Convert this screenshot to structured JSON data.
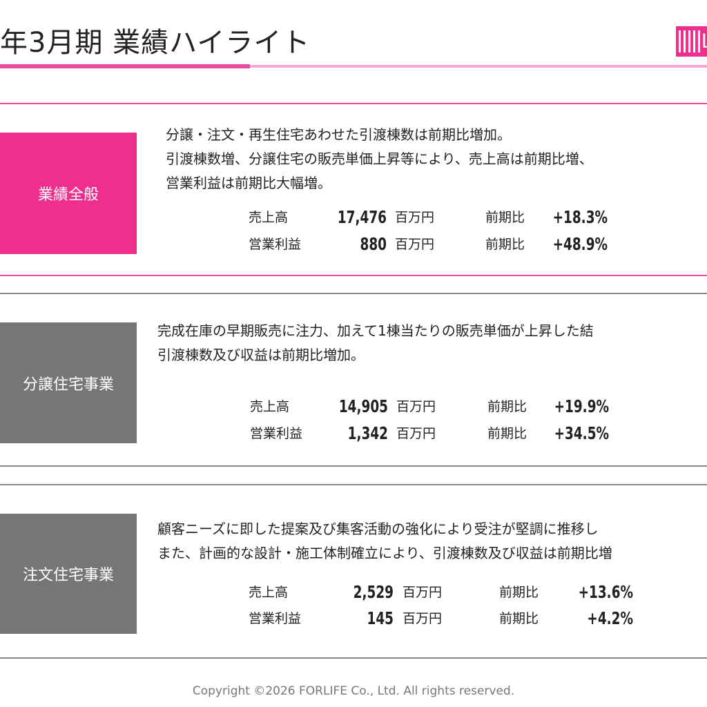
{
  "header": {
    "title": "年3月期 業績ハイライト"
  },
  "logo": {
    "text": "L"
  },
  "sections": [
    {
      "label": "業績全般",
      "lines": [
        "分譲・注文・再生住宅あわせた引渡棟数は前期比増加。",
        "引渡棟数増、分譲住宅の販売単価上昇等により、売上高は前期比増、",
        "営業利益は前期比大幅増。"
      ],
      "metrics": [
        {
          "label": "売上高",
          "value": "17,476",
          "unit": "百万円",
          "yoy_label": "前期比",
          "change": "+18.3%"
        },
        {
          "label": "営業利益",
          "value": "880",
          "unit": "百万円",
          "yoy_label": "前期比",
          "change": "+48.9%"
        }
      ]
    },
    {
      "label": "分譲住宅事業",
      "lines": [
        "完成在庫の早期販売に注力、加えて1棟当たりの販売単価が上昇した結",
        "引渡棟数及び収益は前期比増加。"
      ],
      "metrics": [
        {
          "label": "売上高",
          "value": "14,905",
          "unit": "百万円",
          "yoy_label": "前期比",
          "change": "+19.9%"
        },
        {
          "label": "営業利益",
          "value": "1,342",
          "unit": "百万円",
          "yoy_label": "前期比",
          "change": "+34.5%"
        }
      ]
    },
    {
      "label": "注文住宅事業",
      "lines": [
        "顧客ニーズに即した提案及び集客活動の強化により受注が堅調に推移し",
        "また、計画的な設計・施工体制確立により、引渡棟数及び収益は前期比増"
      ],
      "metrics": [
        {
          "label": "売上高",
          "value": "2,529",
          "unit": "百万円",
          "yoy_label": "前期比",
          "change": "+13.6%"
        },
        {
          "label": "営業利益",
          "value": "145",
          "unit": "百万円",
          "yoy_label": "前期比",
          "change": "+4.2%"
        }
      ]
    }
  ],
  "footer": "Copyright ©2026 FORLIFE Co., Ltd. All rights reserved.",
  "colors": {
    "accent": "#ee2f8e",
    "accent_light": "#f6a9cf",
    "section_gray": "#767676"
  }
}
